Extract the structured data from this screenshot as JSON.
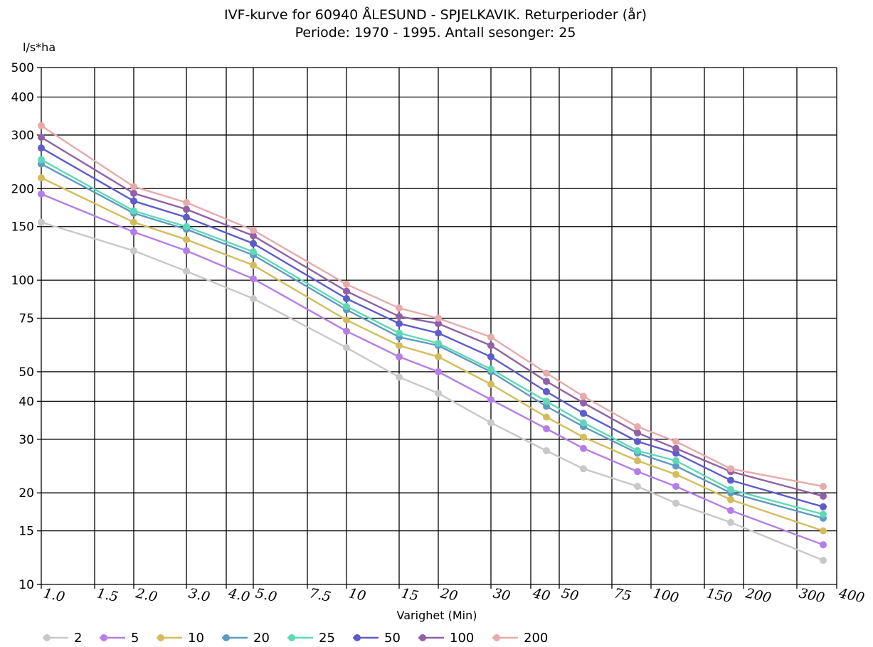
{
  "chart_data": {
    "type": "line",
    "title": "IVF-kurve for 60940 ÅLESUND - SPJELKAVIK. Returperioder (år)",
    "subtitle": "Periode: 1970 - 1995. Antall sesonger: 25",
    "ylabel": "l/s*ha",
    "xlabel": "Varighet  (Min)",
    "y_scale": "log",
    "ylim": [
      10,
      500
    ],
    "y_ticks": [
      10,
      15,
      20,
      30,
      40,
      50,
      75,
      100,
      150,
      200,
      300,
      400,
      500
    ],
    "y_tick_labels": [
      "10",
      "15",
      "20",
      "30",
      "40",
      "50",
      "75",
      "100",
      "150",
      "200",
      "300",
      "400",
      "500"
    ],
    "x_tick_labels": [
      "1.0",
      "1.5",
      "2.0",
      "3.0",
      "4.0",
      "5.0",
      "7.5",
      "10",
      "15",
      "20",
      "30",
      "40",
      "50",
      "75",
      "100",
      "150",
      "200",
      "300",
      "400"
    ],
    "x_data_ticks": [
      "1.0",
      "2.0",
      "3.0",
      "5.0",
      "10",
      "15",
      "20",
      "30",
      "45",
      "60",
      "90",
      "120",
      "180",
      "360"
    ],
    "grid": true,
    "legend_position": "bottom-left",
    "series": [
      {
        "name": "2",
        "color": "#c8c8c8",
        "values": [
          155,
          125,
          107,
          87,
          60,
          48,
          42.5,
          34,
          27.5,
          24,
          21,
          18.5,
          16,
          12
        ]
      },
      {
        "name": "5",
        "color": "#b57ee6",
        "values": [
          192,
          144,
          125,
          101,
          68,
          56,
          50,
          40.5,
          32.5,
          28,
          23.5,
          21,
          17.5,
          13.5
        ]
      },
      {
        "name": "10",
        "color": "#d4bc5c",
        "values": [
          217,
          155,
          136,
          112,
          74,
          61,
          56,
          45.5,
          35.5,
          30.5,
          25.5,
          23,
          19,
          15
        ]
      },
      {
        "name": "20",
        "color": "#5f9ac0",
        "values": [
          241,
          166,
          147,
          121,
          80,
          65,
          61,
          50,
          38.5,
          33,
          27,
          24.5,
          20,
          16.5
        ]
      },
      {
        "name": "25",
        "color": "#5fd8b8",
        "values": [
          249,
          169,
          150,
          124,
          82,
          67,
          62,
          51,
          40,
          34,
          27.5,
          25.5,
          20.5,
          17
        ]
      },
      {
        "name": "50",
        "color": "#5c5ccc",
        "values": [
          272,
          182,
          161,
          132,
          87,
          72,
          67,
          56,
          43,
          36.5,
          29.5,
          27,
          22,
          18
        ]
      },
      {
        "name": "100",
        "color": "#9060a8",
        "values": [
          295,
          193,
          171,
          140,
          92,
          76,
          72,
          61,
          46.5,
          39.5,
          31.5,
          28,
          23.5,
          19.5
        ]
      },
      {
        "name": "200",
        "color": "#e8aaaa",
        "values": [
          322,
          203,
          180,
          146,
          97,
          81,
          75,
          65,
          49.5,
          41.5,
          33,
          29.5,
          24,
          21
        ]
      }
    ]
  }
}
